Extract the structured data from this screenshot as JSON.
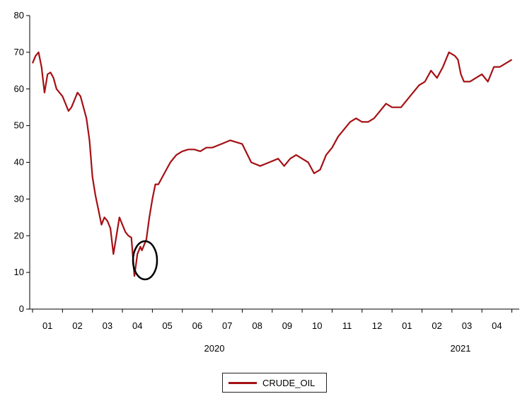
{
  "chart_data": {
    "type": "line",
    "title": "",
    "xlabel": "",
    "ylabel": "",
    "ylim": [
      0,
      80
    ],
    "yticks": [
      0,
      10,
      20,
      30,
      40,
      50,
      60,
      70,
      80
    ],
    "x_month_labels": [
      "01",
      "02",
      "03",
      "04",
      "05",
      "06",
      "07",
      "08",
      "09",
      "10",
      "11",
      "12",
      "01",
      "02",
      "03",
      "04"
    ],
    "year_labels": [
      "2020",
      "2021"
    ],
    "series": [
      {
        "name": "CRUDE_OIL",
        "color": "#a51014",
        "x_unit": "months since 2020-01-01",
        "x": [
          0.0,
          0.1,
          0.2,
          0.3,
          0.4,
          0.5,
          0.6,
          0.7,
          0.8,
          0.9,
          1.0,
          1.1,
          1.2,
          1.3,
          1.4,
          1.5,
          1.6,
          1.7,
          1.8,
          1.9,
          2.0,
          2.1,
          2.2,
          2.3,
          2.4,
          2.5,
          2.6,
          2.7,
          2.8,
          2.9,
          3.0,
          3.1,
          3.2,
          3.3,
          3.4,
          3.5,
          3.6,
          3.65,
          3.7,
          3.75,
          3.8,
          3.9,
          4.0,
          4.1,
          4.2,
          4.4,
          4.6,
          4.8,
          5.0,
          5.2,
          5.4,
          5.6,
          5.8,
          6.0,
          6.3,
          6.6,
          7.0,
          7.3,
          7.6,
          7.9,
          8.2,
          8.4,
          8.6,
          8.8,
          9.0,
          9.2,
          9.4,
          9.6,
          9.8,
          10.0,
          10.2,
          10.4,
          10.6,
          10.8,
          11.0,
          11.2,
          11.4,
          11.6,
          11.8,
          12.0,
          12.3,
          12.6,
          12.9,
          13.1,
          13.3,
          13.5,
          13.7,
          13.9,
          14.1,
          14.2,
          14.3,
          14.4,
          14.6,
          14.8,
          15.0,
          15.2,
          15.4,
          15.6,
          15.8,
          16.0
        ],
        "values": [
          67,
          69,
          70,
          66,
          59,
          64,
          64.5,
          63,
          60,
          59,
          58,
          56,
          54,
          55,
          57,
          59,
          58,
          55,
          52,
          46,
          36,
          31,
          27,
          23,
          25,
          24,
          22,
          15,
          20,
          25,
          23,
          21,
          20,
          19.5,
          9,
          15,
          17,
          16,
          17,
          18,
          19,
          25,
          30,
          34,
          34,
          37,
          40,
          42,
          43,
          43.5,
          43.5,
          43,
          44,
          44,
          45,
          46,
          45,
          40,
          39,
          40,
          41,
          39,
          41,
          42,
          41,
          40,
          37,
          38,
          42,
          44,
          47,
          49,
          51,
          52,
          51,
          51,
          52,
          54,
          56,
          55,
          55,
          58,
          61,
          62,
          65,
          63,
          66,
          70,
          69,
          68,
          64,
          62,
          62,
          63,
          64,
          62,
          66,
          66,
          67,
          68
        ]
      }
    ],
    "legend": [
      "CRUDE_OIL"
    ],
    "legend_position": "bottom-center"
  }
}
